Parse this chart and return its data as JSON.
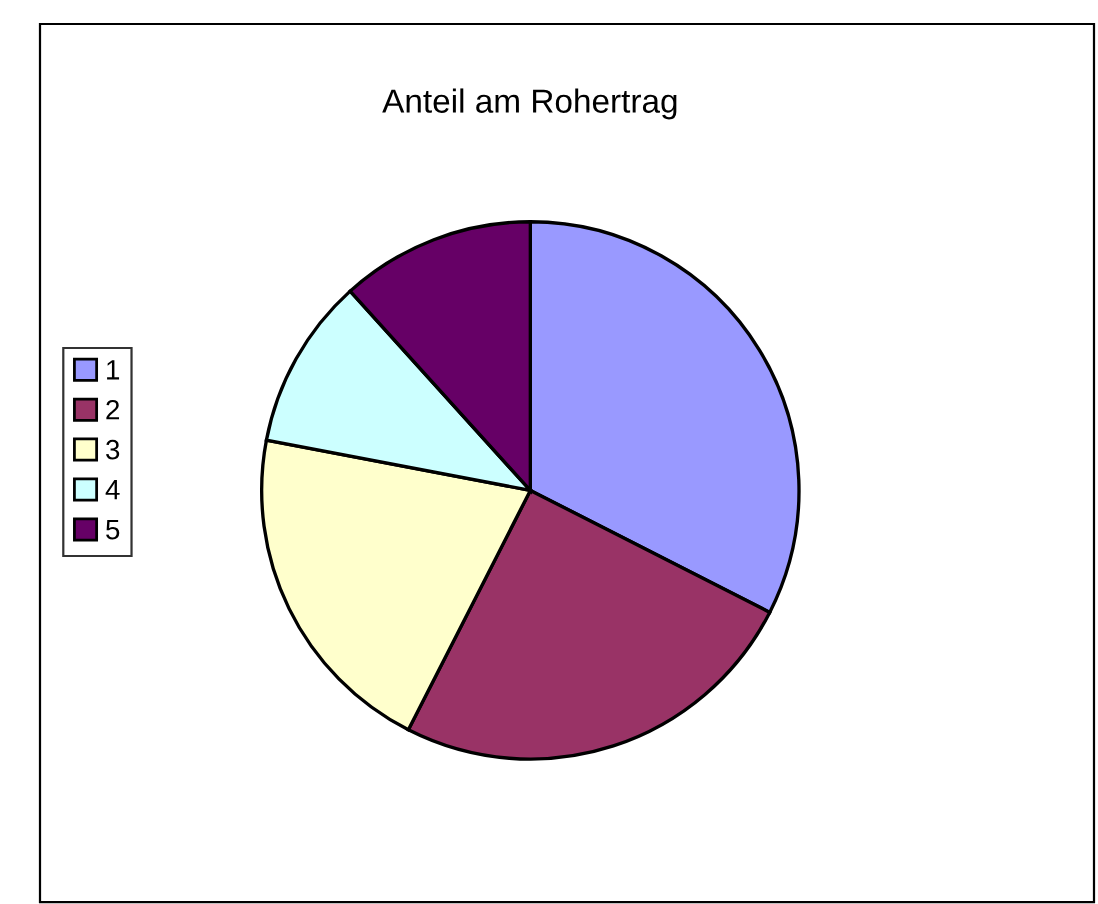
{
  "chart_data": {
    "type": "pie",
    "title": "Anteil am Rohertrag",
    "categories": [
      "1",
      "2",
      "3",
      "4",
      "5"
    ],
    "values": [
      32.5,
      25,
      20.5,
      10.3,
      11.7
    ],
    "colors": [
      "#9999ff",
      "#993366",
      "#ffffcc",
      "#ccffff",
      "#660066"
    ],
    "legend": "left"
  }
}
